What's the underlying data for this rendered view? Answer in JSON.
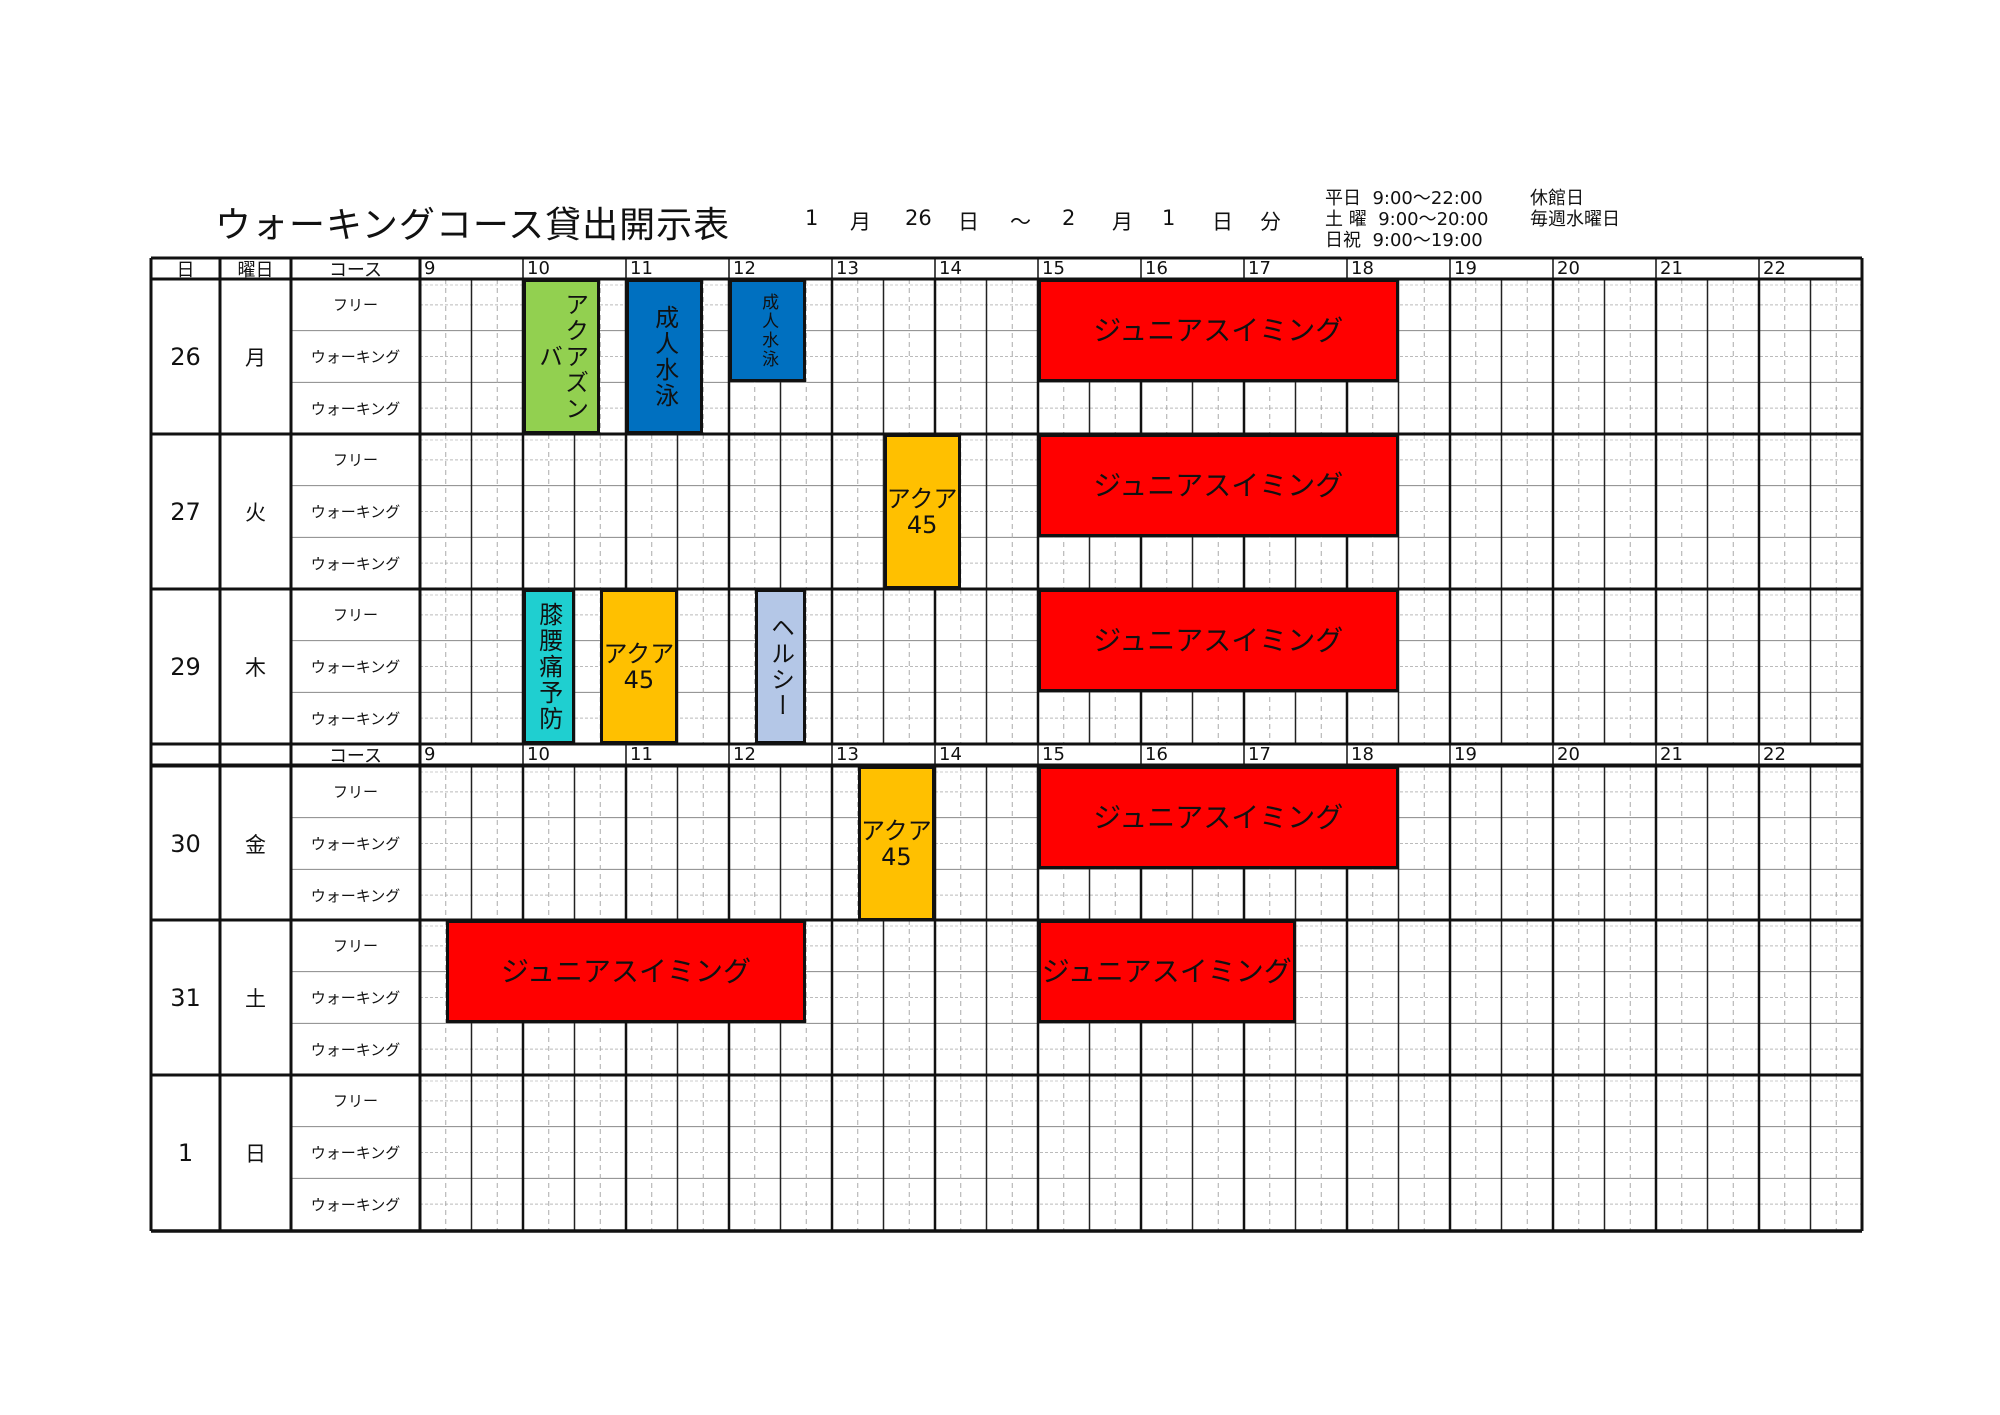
{
  "header": {
    "title": "ウォーキングコース貸出開示表",
    "period": [
      "1",
      "月",
      "26",
      "日",
      "～",
      "2",
      "月",
      "1",
      "日",
      "分"
    ],
    "hours": [
      {
        "label": "平日",
        "time": "9:00～22:00"
      },
      {
        "label": "土 曜",
        "time": "9:00～20:00"
      },
      {
        "label": "日祝",
        "time": "9:00～19:00"
      }
    ],
    "closed_label": "休館日",
    "closed_value": "毎週水曜日"
  },
  "table": {
    "col_headers": {
      "day": "日",
      "weekday": "曜日",
      "course": "コース"
    },
    "hour_labels": [
      "9",
      "10",
      "11",
      "12",
      "13",
      "14",
      "15",
      "16",
      "17",
      "18",
      "19",
      "20",
      "21",
      "22"
    ],
    "lanes": [
      "フリー",
      "ウォーキング",
      "ウォーキング"
    ],
    "days": [
      {
        "day": "26",
        "weekday": "月"
      },
      {
        "day": "27",
        "weekday": "火"
      },
      {
        "day": "29",
        "weekday": "木"
      },
      {
        "day": "30",
        "weekday": "金"
      },
      {
        "day": "31",
        "weekday": "土"
      },
      {
        "day": "1",
        "weekday": "日"
      }
    ]
  },
  "colors": {
    "green": "#92d050",
    "blue": "#0070c0",
    "red": "#ff0000",
    "yellow": "#ffc000",
    "cyan": "#1fcfd0",
    "lightblue": "#b4c7e7"
  },
  "events": [
    {
      "day": 0,
      "label": "アクアズンバ",
      "start": 10.0,
      "end": 10.75,
      "lanes": [
        0,
        3
      ],
      "color": "green",
      "text": "vertical"
    },
    {
      "day": 0,
      "label": "成人水泳",
      "start": 11.0,
      "end": 11.75,
      "lanes": [
        0,
        3
      ],
      "color": "blue",
      "text": "vertical"
    },
    {
      "day": 0,
      "label": "成人水泳",
      "start": 12.0,
      "end": 12.75,
      "lanes": [
        0,
        2
      ],
      "color": "blue",
      "text": "vertical-small"
    },
    {
      "day": 0,
      "label": "ジュニアスイミング",
      "start": 15.0,
      "end": 18.5,
      "lanes": [
        0,
        2
      ],
      "color": "red",
      "text": "horizontal"
    },
    {
      "day": 1,
      "label": "アクア 45",
      "start": 13.5,
      "end": 14.25,
      "lanes": [
        0,
        3
      ],
      "color": "yellow",
      "text": "horizontal"
    },
    {
      "day": 1,
      "label": "ジュニアスイミング",
      "start": 15.0,
      "end": 18.5,
      "lanes": [
        0,
        2
      ],
      "color": "red",
      "text": "horizontal"
    },
    {
      "day": 2,
      "label": "膝腰痛予防",
      "start": 10.0,
      "end": 10.5,
      "lanes": [
        0,
        3
      ],
      "color": "cyan",
      "text": "vertical"
    },
    {
      "day": 2,
      "label": "アクア 45",
      "start": 10.75,
      "end": 11.5,
      "lanes": [
        0,
        3
      ],
      "color": "yellow",
      "text": "horizontal"
    },
    {
      "day": 2,
      "label": "ヘルシー",
      "start": 12.25,
      "end": 12.75,
      "lanes": [
        0,
        3
      ],
      "color": "lightblue",
      "text": "vertical"
    },
    {
      "day": 2,
      "label": "ジュニアスイミング",
      "start": 15.0,
      "end": 18.5,
      "lanes": [
        0,
        2
      ],
      "color": "red",
      "text": "horizontal"
    },
    {
      "day": 3,
      "label": "アクア 45",
      "start": 13.25,
      "end": 14.0,
      "lanes": [
        0,
        3
      ],
      "color": "yellow",
      "text": "horizontal"
    },
    {
      "day": 3,
      "label": "ジュニアスイミング",
      "start": 15.0,
      "end": 18.5,
      "lanes": [
        0,
        2
      ],
      "color": "red",
      "text": "horizontal"
    },
    {
      "day": 4,
      "label": "ジュニアスイミング",
      "start": 9.25,
      "end": 12.75,
      "lanes": [
        0,
        2
      ],
      "color": "red",
      "text": "horizontal"
    },
    {
      "day": 4,
      "label": "ジュニアスイミング",
      "start": 15.0,
      "end": 17.5,
      "lanes": [
        0,
        2
      ],
      "color": "red",
      "text": "horizontal"
    }
  ]
}
